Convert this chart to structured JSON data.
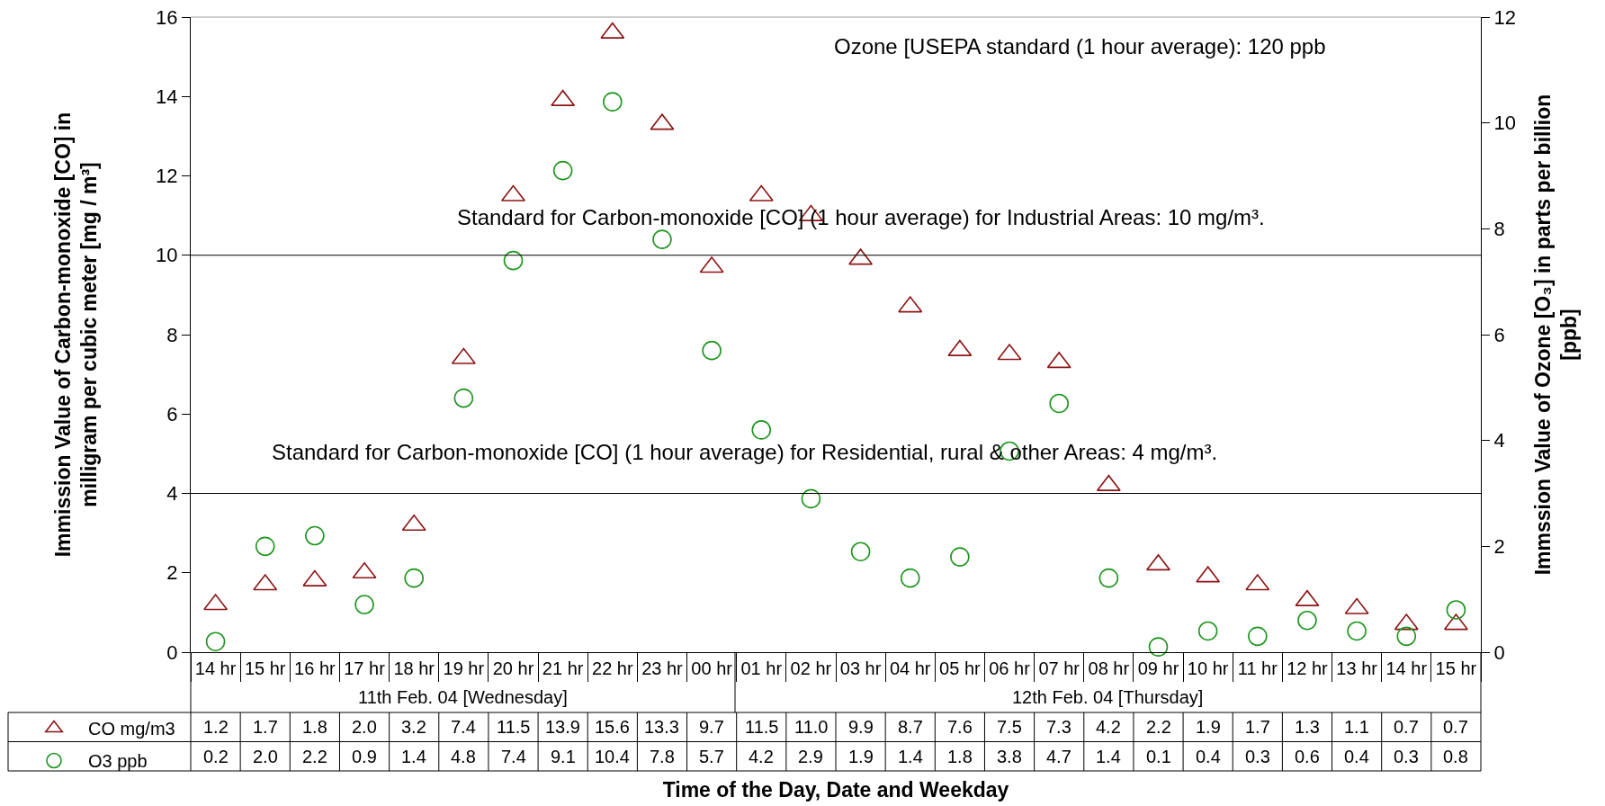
{
  "chart_data": {
    "type": "scatter",
    "categories": [
      "14 hr",
      "15 hr",
      "16 hr",
      "17 hr",
      "18 hr",
      "19 hr",
      "20 hr",
      "21 hr",
      "22 hr",
      "23 hr",
      "00 hr",
      "01 hr",
      "02 hr",
      "03 hr",
      "04 hr",
      "05 hr",
      "06 hr",
      "07 hr",
      "08 hr",
      "09 hr",
      "10 hr",
      "11 hr",
      "12 hr",
      "13 hr",
      "14 hr",
      "15 hr"
    ],
    "xlabel": "Time of the Day, Date and Weekday",
    "ylabel": "Immission Value of Carbon-monoxide [CO] in milligram per cubic meter [mg / m³]",
    "y2label": "Immssion Value of Ozone [O₃] in parts per billion [ppb]",
    "ylim": [
      0,
      16
    ],
    "yticks": [
      0,
      2,
      4,
      6,
      8,
      10,
      12,
      14,
      16
    ],
    "y2lim": [
      0,
      12
    ],
    "y2ticks": [
      0,
      2,
      4,
      6,
      8,
      10,
      12
    ],
    "series": [
      {
        "name": "CO mg/m3",
        "color": "#8c1414",
        "marker": "triangle",
        "values": [
          1.2,
          1.7,
          1.8,
          2.0,
          3.2,
          7.4,
          11.5,
          13.9,
          15.6,
          13.3,
          9.7,
          11.5,
          11.0,
          9.9,
          8.7,
          7.6,
          7.5,
          7.3,
          4.2,
          2.2,
          1.9,
          1.7,
          1.3,
          1.1,
          0.7,
          0.7
        ],
        "value_labels": [
          "1.2",
          "1.7",
          "1.8",
          "2.0",
          "3.2",
          "7.4",
          "11.5",
          "13.9",
          "15.6",
          "13.3",
          "9.7",
          "11.5",
          "11.0",
          "9.9",
          "8.7",
          "7.6",
          "7.5",
          "7.3",
          "4.2",
          "2.2",
          "1.9",
          "1.7",
          "1.3",
          "1.1",
          "0.7",
          "0.7"
        ]
      },
      {
        "name": "O3 ppb",
        "color": "#1e961e",
        "marker": "circle",
        "axis": "y2",
        "values": [
          0.2,
          2.0,
          2.2,
          0.9,
          1.4,
          4.8,
          7.4,
          9.1,
          10.4,
          7.8,
          5.7,
          4.2,
          2.9,
          1.9,
          1.4,
          1.8,
          3.8,
          4.7,
          1.4,
          0.1,
          0.4,
          0.3,
          0.6,
          0.4,
          0.3,
          0.8
        ],
        "value_labels": [
          "0.2",
          "2.0",
          "2.2",
          "0.9",
          "1.4",
          "4.8",
          "7.4",
          "9.1",
          "10.4",
          "7.8",
          "5.7",
          "4.2",
          "2.9",
          "1.9",
          "1.4",
          "1.8",
          "3.8",
          "4.7",
          "1.4",
          "0.1",
          "0.4",
          "0.3",
          "0.6",
          "0.4",
          "0.3",
          "0.8"
        ]
      }
    ],
    "ref_lines": [
      {
        "axis": "y",
        "value": 10,
        "label": "Standard for Carbon-monoxide [CO] (1 hour average) for Industrial Areas: 10 mg/m³.",
        "color": "#000000"
      },
      {
        "axis": "y",
        "value": 4,
        "label": "Standard for Carbon-monoxide [CO] (1 hour average) for Residential, rural & other Areas: 4 mg/m³.",
        "color": "#000000"
      }
    ],
    "annotations": [
      "Ozone [USEPA standard (1 hour average): 120 ppb",
      "11th Feb. 04 [Wednesday]",
      "12th Feb. 04 [Thursday]"
    ],
    "legend": "bottom left",
    "grid": false
  }
}
